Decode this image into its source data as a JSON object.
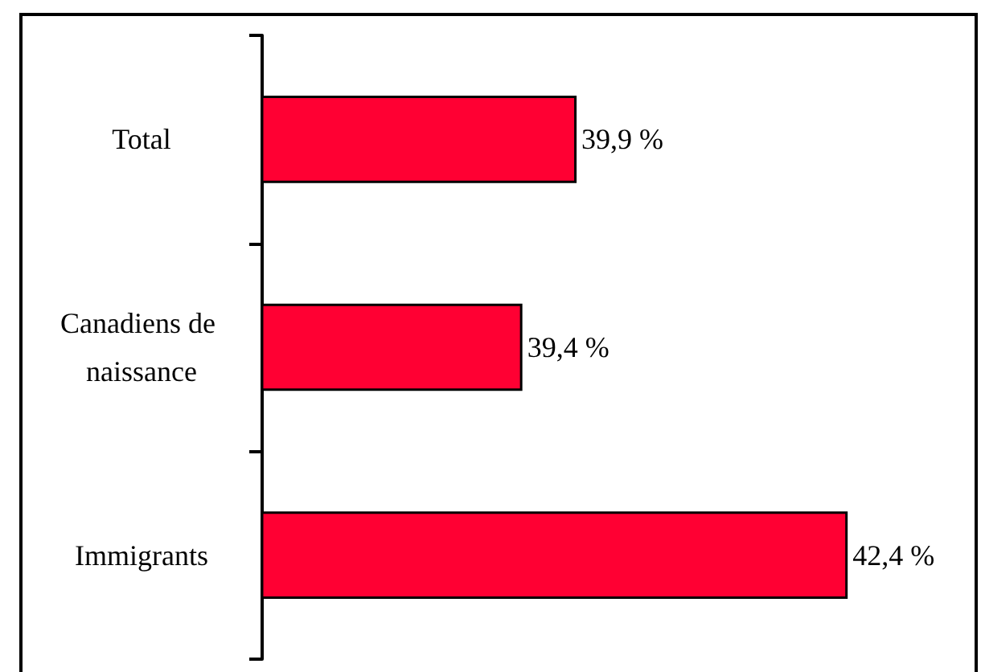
{
  "chart_data": {
    "type": "bar",
    "orientation": "horizontal",
    "categories": [
      "Total",
      "Canadiens de naissance",
      "Immigrants"
    ],
    "values": [
      39.9,
      39.4,
      42.4
    ],
    "value_labels": [
      "39,9 %",
      "39,4 %",
      "42,4 %"
    ],
    "color": "#ff0033",
    "xlim": [
      37,
      43.6
    ],
    "grid": false
  }
}
